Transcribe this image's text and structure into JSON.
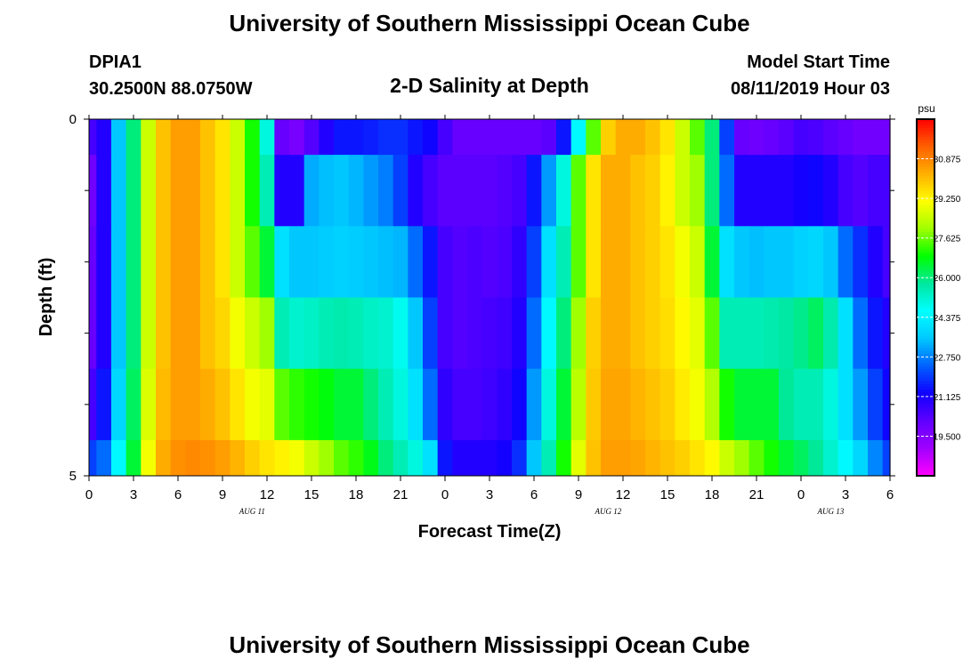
{
  "header": {
    "title_top": "University of Southern Mississippi Ocean Cube",
    "title_bottom": "University of Southern Mississippi Ocean Cube",
    "station": "DPIA1",
    "coords": "30.2500N 88.0750W",
    "subtitle": "2-D Salinity at Depth",
    "start_label": "Model Start Time",
    "start_value": "08/11/2019 Hour 03"
  },
  "chart_data": {
    "type": "heatmap",
    "title": "2-D Salinity at Depth",
    "xlabel": "Forecast Time(Z)",
    "ylabel": "Depth (ft)",
    "x_ticks": [
      "0",
      "3",
      "6",
      "9",
      "12",
      "15",
      "18",
      "21",
      "0",
      "3",
      "6",
      "9",
      "12",
      "15",
      "18",
      "21",
      "0",
      "3",
      "6"
    ],
    "date_labels": [
      {
        "label": "AUG 11",
        "hour": 11
      },
      {
        "label": "AUG 12",
        "hour": 35
      },
      {
        "label": "AUG 13",
        "hour": 50
      }
    ],
    "x_range_hours": [
      0,
      54
    ],
    "y_range_ft": [
      0,
      5
    ],
    "y_tick_labels": [
      {
        "value": 0,
        "label": "0"
      },
      {
        "value": 5,
        "label": "5"
      }
    ],
    "y_minor_ticks": [
      1,
      2,
      3,
      4
    ],
    "row_depths_ft": [
      0,
      0.5,
      1.5,
      2.5,
      3.5,
      4.5
    ],
    "row_bounds_ft": [
      [
        0,
        0.5
      ],
      [
        0.5,
        1.5
      ],
      [
        1.5,
        2.5
      ],
      [
        2.5,
        3.5
      ],
      [
        3.5,
        4.5
      ],
      [
        4.5,
        5.0
      ]
    ],
    "hours": [
      0,
      1,
      2,
      3,
      4,
      5,
      6,
      7,
      8,
      9,
      10,
      11,
      12,
      13,
      14,
      15,
      16,
      17,
      18,
      19,
      20,
      21,
      22,
      23,
      24,
      25,
      26,
      27,
      28,
      29,
      30,
      31,
      32,
      33,
      34,
      35,
      36,
      37,
      38,
      39,
      40,
      41,
      42,
      43,
      44,
      45,
      46,
      47,
      48,
      49,
      50,
      51,
      52,
      53,
      54
    ],
    "values": [
      [
        20.5,
        21.0,
        23.5,
        26.0,
        28.5,
        30.0,
        30.5,
        30.5,
        30.0,
        29.5,
        28.5,
        27.0,
        25.0,
        20.0,
        19.7,
        20.3,
        21.0,
        21.5,
        21.5,
        21.6,
        21.8,
        21.8,
        21.5,
        21.3,
        20.5,
        20.0,
        20.0,
        20.0,
        20.0,
        20.0,
        20.0,
        20.2,
        21.5,
        24.5,
        27.5,
        29.8,
        30.3,
        30.3,
        30.0,
        29.5,
        28.5,
        27.5,
        26.0,
        22.0,
        20.0,
        19.9,
        20.0,
        20.2,
        20.5,
        20.4,
        20.2,
        20.0,
        19.8,
        19.8,
        19.8
      ],
      [
        19.8,
        21.0,
        23.5,
        26.0,
        28.5,
        30.0,
        30.5,
        30.5,
        30.0,
        29.5,
        28.5,
        27.0,
        25.5,
        21.0,
        21.0,
        23.2,
        23.4,
        23.5,
        23.3,
        23.0,
        22.7,
        22.0,
        21.0,
        20.5,
        20.2,
        20.2,
        20.2,
        20.2,
        20.3,
        20.5,
        21.5,
        23.0,
        25.0,
        27.5,
        29.5,
        30.3,
        30.3,
        30.0,
        29.8,
        29.3,
        28.5,
        28.0,
        26.0,
        22.5,
        21.0,
        21.0,
        21.0,
        21.0,
        21.2,
        21.3,
        21.0,
        20.5,
        20.3,
        20.5,
        20.5
      ],
      [
        20.0,
        21.0,
        23.5,
        26.0,
        28.5,
        30.0,
        30.5,
        30.5,
        30.0,
        29.5,
        28.5,
        27.5,
        26.5,
        24.0,
        23.5,
        23.5,
        23.6,
        23.7,
        23.6,
        23.5,
        23.4,
        23.3,
        22.5,
        21.5,
        20.5,
        20.3,
        20.4,
        20.3,
        20.4,
        20.8,
        22.0,
        24.0,
        25.5,
        27.5,
        29.5,
        30.3,
        30.3,
        30.0,
        29.8,
        29.5,
        29.0,
        28.5,
        26.5,
        24.0,
        23.5,
        23.4,
        23.5,
        23.5,
        23.7,
        23.8,
        23.5,
        22.5,
        21.8,
        21.0,
        20.5
      ],
      [
        20.0,
        21.0,
        23.5,
        26.0,
        28.5,
        30.0,
        30.5,
        30.5,
        30.0,
        29.7,
        29.0,
        28.5,
        28.0,
        25.5,
        25.2,
        25.3,
        25.5,
        25.6,
        25.5,
        25.3,
        25.2,
        24.8,
        23.5,
        22.0,
        20.5,
        20.3,
        20.4,
        20.5,
        20.6,
        21.0,
        22.5,
        24.5,
        26.0,
        28.0,
        29.8,
        30.3,
        30.3,
        30.0,
        29.8,
        29.6,
        29.2,
        28.8,
        27.5,
        25.5,
        25.5,
        25.5,
        25.6,
        25.7,
        25.9,
        26.2,
        25.6,
        24.0,
        22.5,
        21.5,
        21.0
      ],
      [
        20.5,
        21.5,
        23.8,
        26.2,
        28.7,
        30.1,
        30.5,
        30.5,
        30.3,
        30.0,
        29.5,
        29.0,
        28.8,
        27.5,
        27.2,
        27.0,
        26.8,
        26.5,
        26.5,
        26.0,
        25.5,
        25.0,
        24.0,
        22.5,
        20.8,
        20.5,
        20.5,
        20.6,
        20.8,
        21.3,
        23.0,
        25.0,
        26.5,
        28.3,
        29.9,
        30.4,
        30.4,
        30.2,
        30.0,
        29.8,
        29.4,
        29.0,
        28.2,
        27.0,
        26.5,
        26.5,
        26.5,
        25.8,
        25.5,
        25.5,
        25.0,
        24.0,
        23.0,
        22.0,
        21.3
      ],
      [
        22.0,
        22.5,
        24.5,
        26.5,
        29.0,
        30.3,
        30.7,
        30.8,
        30.7,
        30.5,
        30.2,
        29.8,
        29.5,
        29.3,
        29.0,
        28.5,
        28.0,
        27.5,
        27.2,
        26.7,
        26.0,
        25.5,
        25.0,
        24.0,
        21.5,
        21.0,
        21.0,
        21.0,
        21.2,
        21.8,
        23.5,
        25.5,
        27.0,
        28.8,
        30.0,
        30.5,
        30.5,
        30.4,
        30.2,
        30.0,
        29.8,
        29.5,
        29.2,
        28.5,
        28.0,
        27.5,
        27.0,
        26.5,
        26.2,
        25.8,
        25.2,
        24.5,
        23.8,
        22.8,
        22.0
      ]
    ],
    "colorbar": {
      "unit": "psu",
      "min": 17.875,
      "max": 32.5,
      "tick_labels": [
        "30.875",
        "29.250",
        "27.625",
        "26.000",
        "24.375",
        "22.750",
        "21.125",
        "19.500"
      ],
      "tick_values": [
        30.875,
        29.25,
        27.625,
        26.0,
        24.375,
        22.75,
        21.125,
        19.5
      ]
    },
    "colormap": [
      "#ff00ff",
      "#a000ff",
      "#6000ff",
      "#1000ff",
      "#0060ff",
      "#00c8ff",
      "#00ffff",
      "#00e8a0",
      "#00ff00",
      "#a0ff00",
      "#ffff00",
      "#ffb000",
      "#ff6000",
      "#ff0000"
    ],
    "grid": false
  }
}
